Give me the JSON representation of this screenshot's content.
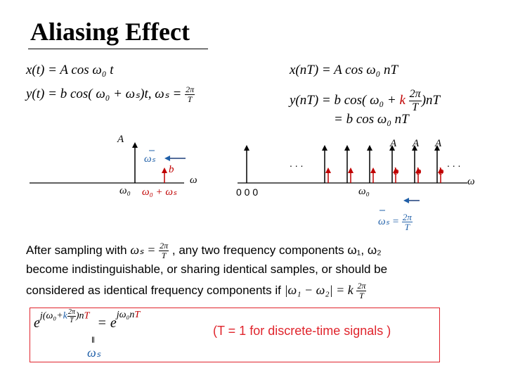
{
  "title": "Aliasing Effect",
  "left_eq": {
    "line1": "x(t) = A cos ω₀ t",
    "line2": "y(t) = b cos( ω₀ + ωₛ)t,  ωₛ =",
    "line2_frac_num": "2π",
    "line2_frac_den": "T"
  },
  "right_eq": {
    "line1": "x(nT) = A cos ω₀ nT",
    "line2_pre": "y(nT) = b cos( ω₀ + ",
    "line2_k": "k",
    "line2_frac_num": "2π",
    "line2_frac_den": "T",
    "line2_post": ")nT",
    "line3": "= b cos ω₀ nT"
  },
  "left_diagram": {
    "amp_label": "A",
    "ws_label": "ωₛ",
    "b_label": "b",
    "axis_label": "ω",
    "w0_label": "ω₀",
    "w0_ws_label": "ω₀ + ωₛ"
  },
  "right_diagram": {
    "zeros_label": "0 0 0",
    "dots_left": ". . .",
    "dots_right": ". . .",
    "amp_labels": [
      "A",
      "A",
      "A"
    ],
    "b_labels": [
      "b",
      "b",
      "b"
    ],
    "axis_label": "ω",
    "w0_label": "ω₀",
    "ws_label": "ωₛ =",
    "ws_frac_num": "2π",
    "ws_frac_den": "T"
  },
  "paragraph": {
    "line1_a": "After sampling with ",
    "line1_ws": "ωₛ =",
    "line1_num": "2π",
    "line1_den": "T",
    "line1_b": " , any two frequency components ω₁, ω₂",
    "line2": "become indistinguishable, or sharing identical samples, or should be",
    "line3_a": "considered as identical frequency components if ",
    "line3_math": "|ω₁ − ω₂| = k",
    "line3_num": "2π",
    "line3_den": "T"
  },
  "boxed": {
    "base": "e",
    "exp_j": "j",
    "exp_open": "(ω₀+",
    "exp_k": "k",
    "exp_num": "2π",
    "exp_den": "T",
    "exp_close": ")n",
    "exp_T": "T",
    "equals": "= e",
    "rhs_exp": "jω₀n",
    "rhs_T": "T",
    "note": "(T = 1 for discrete-time signals )",
    "under_eq": "‖",
    "under_ws": "ωₛ"
  },
  "colors": {
    "red": "#c00000",
    "blue": "#1f5fa8",
    "box": "#e0242c"
  }
}
